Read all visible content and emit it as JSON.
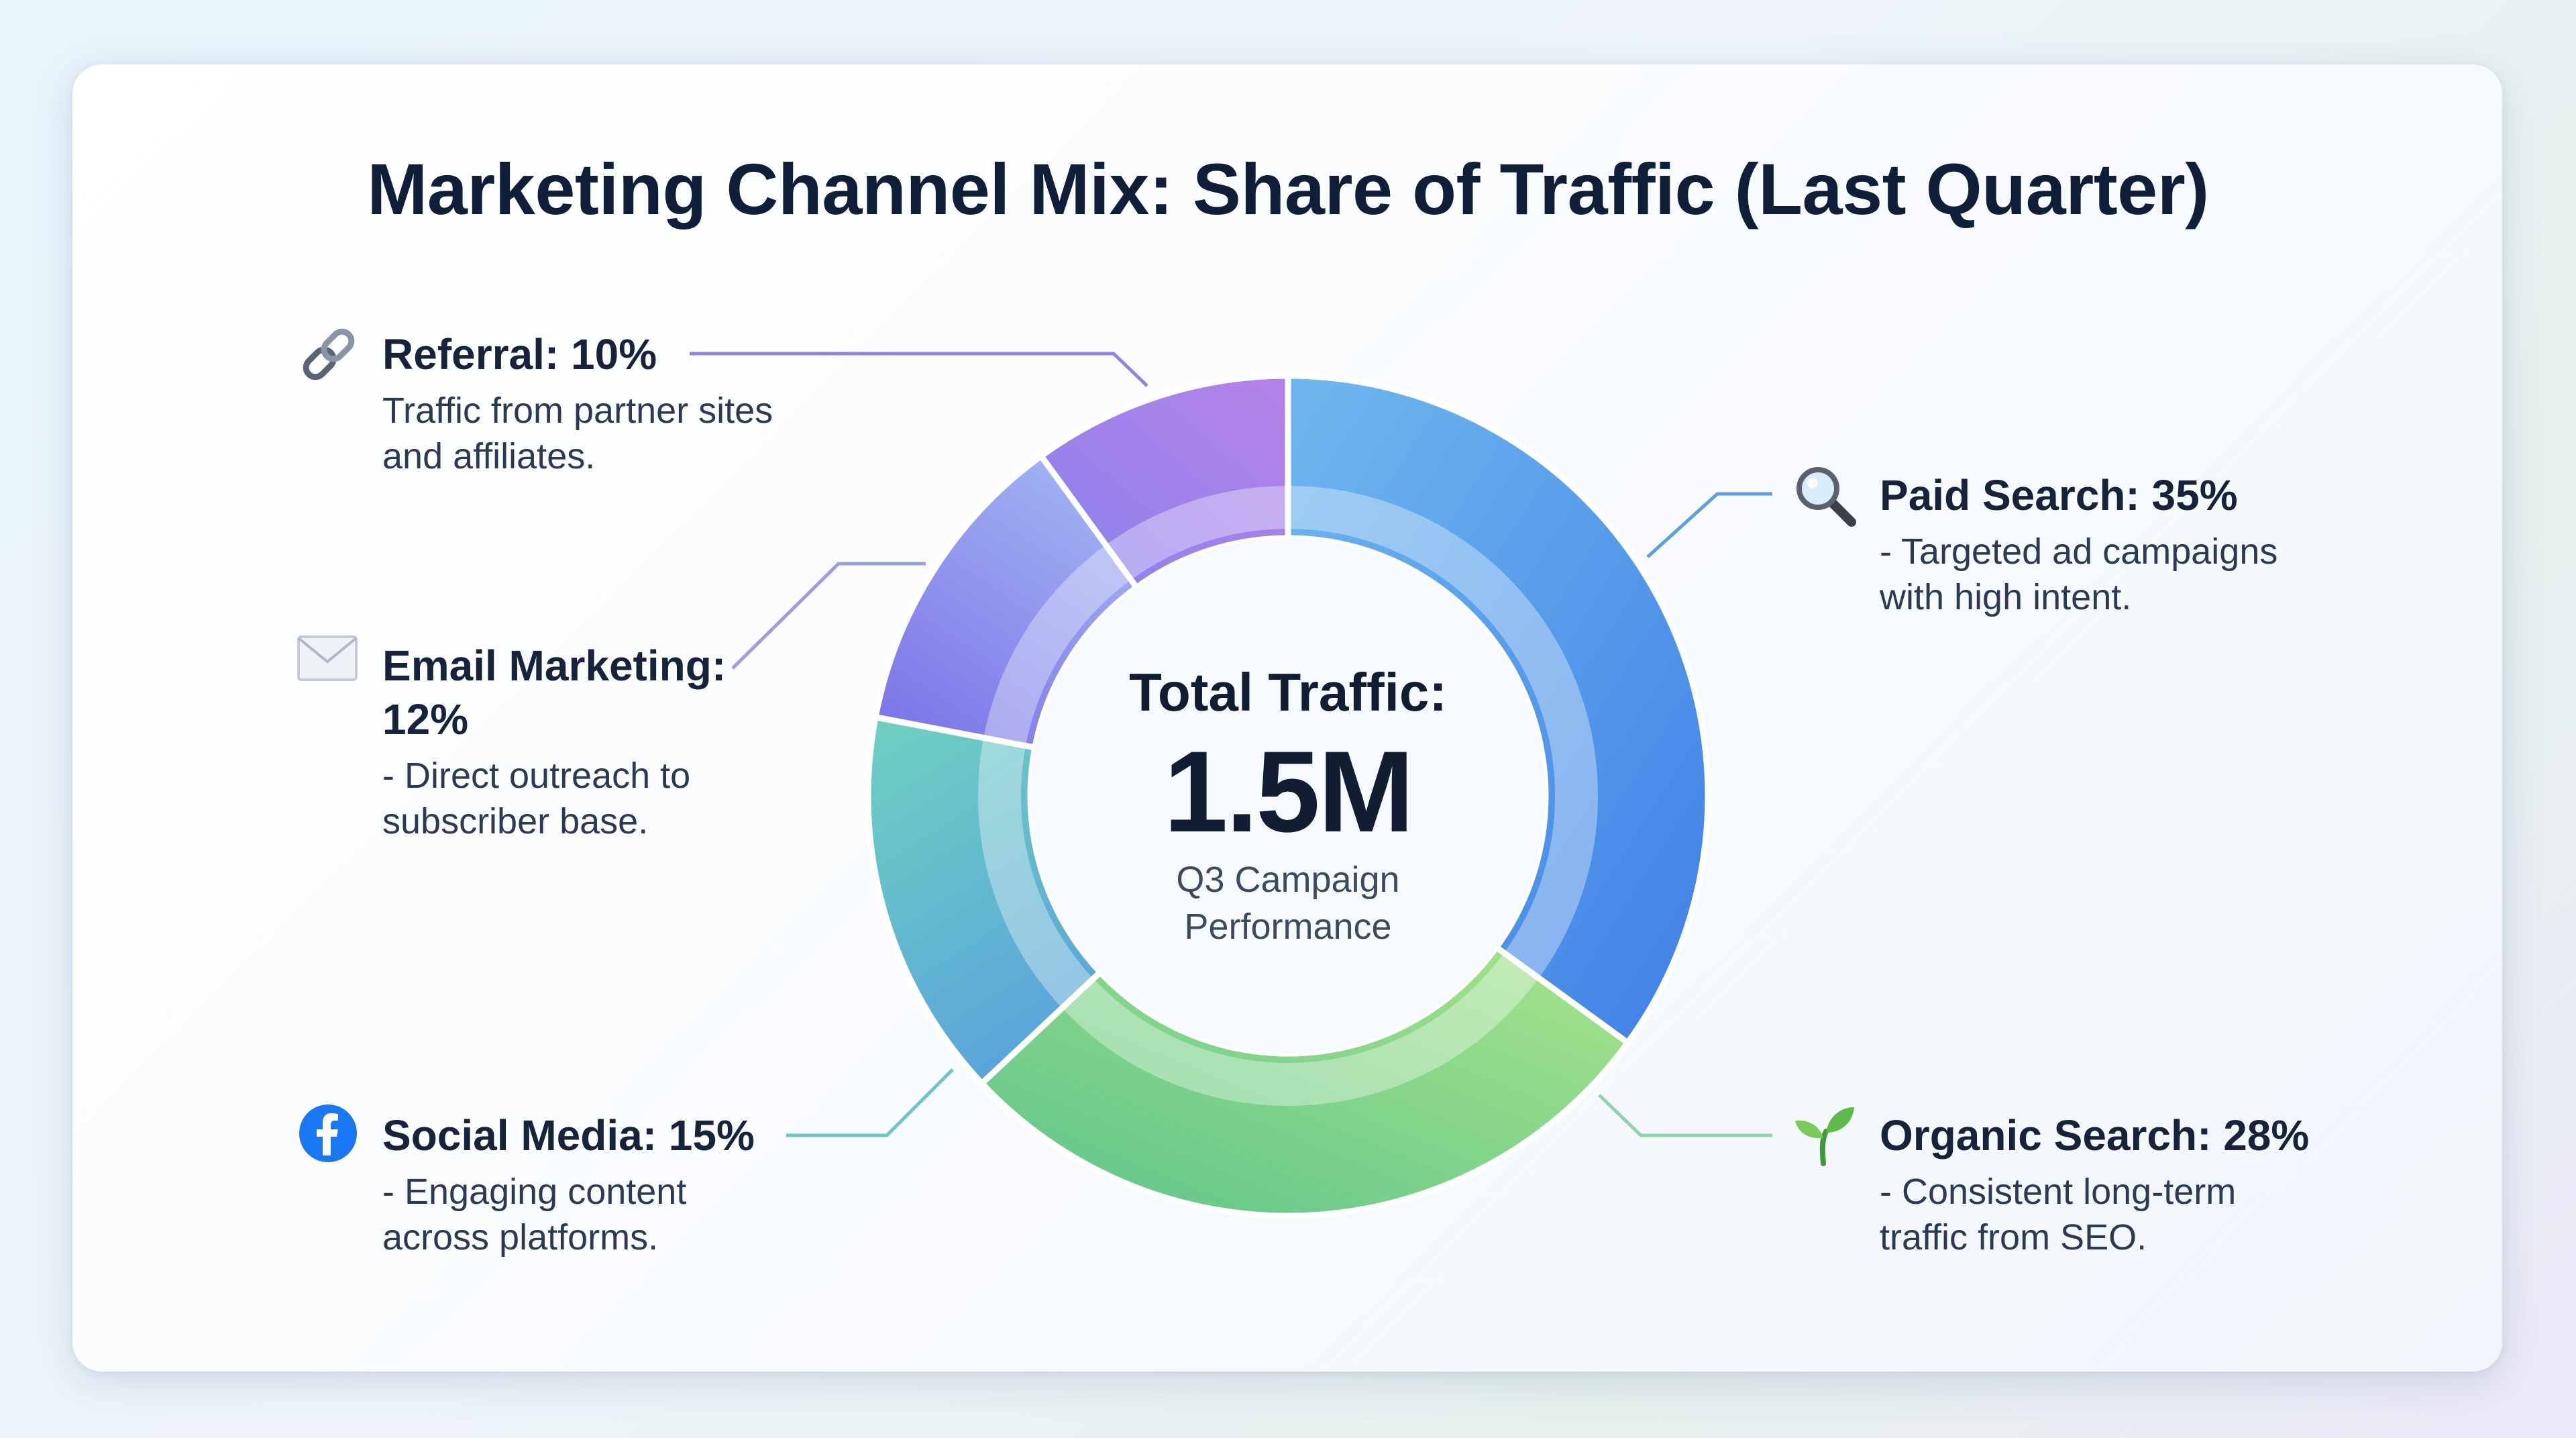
{
  "chart_data": {
    "type": "pie",
    "variant": "donut",
    "title": "Marketing Channel Mix: Share of Traffic (Last Quarter)",
    "center": {
      "title": "Total Traffic:",
      "value": "1.5M",
      "subtitle": "Q3 Campaign Performance"
    },
    "slices": [
      {
        "name": "Paid Search",
        "value": 35,
        "label": "Paid Search: 35%",
        "description": "- Targeted ad campaigns with high intent.",
        "icon": "magnifier-icon",
        "colors": [
          "#6fb8ee",
          "#3f7fe6"
        ]
      },
      {
        "name": "Organic Search",
        "value": 28,
        "label": "Organic Search: 28%",
        "description": "- Consistent long-term traffic from SEO.",
        "icon": "seedling-icon",
        "colors": [
          "#a8e48a",
          "#5cc48c"
        ]
      },
      {
        "name": "Social Media",
        "value": 15,
        "label": "Social Media: 15%",
        "description": "- Engaging content across platforms.",
        "icon": "facebook-icon",
        "colors": [
          "#6fd1c0",
          "#5aa6da"
        ]
      },
      {
        "name": "Email Marketing",
        "value": 12,
        "label": "Email Marketing: 12%",
        "description": "- Direct outreach to subscriber base.",
        "icon": "envelope-icon",
        "colors": [
          "#8fa2f0",
          "#7a70e6"
        ]
      },
      {
        "name": "Referral",
        "value": 10,
        "label": "Referral: 10%",
        "description": "Traffic from partner sites and affiliates.",
        "icon": "link-icon",
        "colors": [
          "#7f88ee",
          "#b07ce8"
        ]
      }
    ]
  }
}
